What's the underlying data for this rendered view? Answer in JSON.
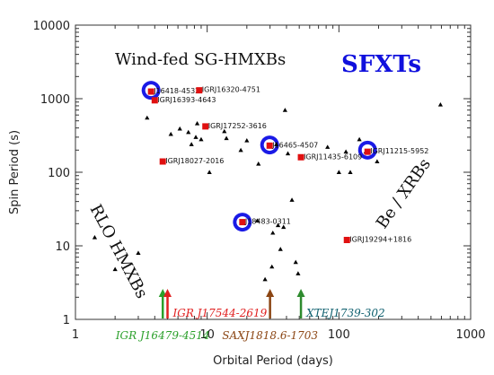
{
  "chart_data": {
    "type": "scatter",
    "title": "",
    "xlabel": "Orbital Period (days)",
    "ylabel": "Spin Period (s)",
    "xscale": "log",
    "yscale": "log",
    "xlim": [
      1,
      1000
    ],
    "ylim": [
      1,
      10000
    ],
    "x_ticks": [
      "1",
      "10",
      "100",
      "1000"
    ],
    "y_ticks": [
      "1",
      "10",
      "100",
      "1000",
      "10000"
    ],
    "grid": false,
    "region_labels": {
      "wind_fed": "Wind-fed SG-HMXBs",
      "sfxts": "SFXTs",
      "rlo": "RLO HMXBs",
      "be": "Be / XRBs"
    },
    "colors": {
      "sfxt_circle": "#1a1ae6",
      "sources": "#e01010",
      "triangles": "#000000",
      "sfxt_text": "#1010dd"
    },
    "series": [
      {
        "name": "",
        "marker": "square",
        "points": [
          {
            "x": 3.75,
            "y": 1250,
            "label": "J16418-4532"
          },
          {
            "x": 8.7,
            "y": 1300,
            "label": "IGRJ16320-4751"
          },
          {
            "x": 4.0,
            "y": 950,
            "label": "IGRJ16393-4643"
          },
          {
            "x": 9.7,
            "y": 420,
            "label": "IGRJ17252-3616"
          },
          {
            "x": 29.8,
            "y": 230,
            "label": "J16465-4507"
          },
          {
            "x": 51.5,
            "y": 160,
            "label": "IGRJ11435-6109"
          },
          {
            "x": 165,
            "y": 190,
            "label": "IGRJ11215-5952"
          },
          {
            "x": 4.6,
            "y": 140,
            "label": "IGRJ18027-2016"
          },
          {
            "x": 18.5,
            "y": 21,
            "label": "J18483-0311"
          },
          {
            "x": 115,
            "y": 12,
            "label": "IGRJ19294+1816"
          }
        ]
      },
      {
        "name": "",
        "marker": "circle",
        "points": [
          {
            "x": 3.75,
            "y": 1300
          },
          {
            "x": 29.8,
            "y": 235
          },
          {
            "x": 165,
            "y": 200
          },
          {
            "x": 18.5,
            "y": 21
          }
        ]
      },
      {
        "name": "",
        "marker": "triangle",
        "points": [
          {
            "x": 1.4,
            "y": 13
          },
          {
            "x": 2.0,
            "y": 4.8
          },
          {
            "x": 3.0,
            "y": 8
          },
          {
            "x": 3.5,
            "y": 550
          },
          {
            "x": 5.3,
            "y": 330
          },
          {
            "x": 6.2,
            "y": 390
          },
          {
            "x": 7.2,
            "y": 350
          },
          {
            "x": 7.6,
            "y": 240
          },
          {
            "x": 8.2,
            "y": 300
          },
          {
            "x": 8.4,
            "y": 460
          },
          {
            "x": 9.0,
            "y": 280
          },
          {
            "x": 10.4,
            "y": 100
          },
          {
            "x": 13.5,
            "y": 360
          },
          {
            "x": 14.0,
            "y": 290
          },
          {
            "x": 18.0,
            "y": 200
          },
          {
            "x": 20.0,
            "y": 270
          },
          {
            "x": 24.0,
            "y": 22
          },
          {
            "x": 24.5,
            "y": 130
          },
          {
            "x": 27.5,
            "y": 3.5
          },
          {
            "x": 31.0,
            "y": 5.2
          },
          {
            "x": 31.5,
            "y": 15
          },
          {
            "x": 33.5,
            "y": 240
          },
          {
            "x": 34.5,
            "y": 19
          },
          {
            "x": 36.0,
            "y": 9
          },
          {
            "x": 38.0,
            "y": 18
          },
          {
            "x": 39.0,
            "y": 700
          },
          {
            "x": 41.0,
            "y": 180
          },
          {
            "x": 44.0,
            "y": 42
          },
          {
            "x": 47.0,
            "y": 6
          },
          {
            "x": 49.0,
            "y": 4.2
          },
          {
            "x": 82.0,
            "y": 220
          },
          {
            "x": 100.0,
            "y": 100
          },
          {
            "x": 113.0,
            "y": 190
          },
          {
            "x": 122.0,
            "y": 100
          },
          {
            "x": 143.0,
            "y": 280
          },
          {
            "x": 160.0,
            "y": 190
          },
          {
            "x": 195.0,
            "y": 140
          },
          {
            "x": 590.0,
            "y": 830
          }
        ]
      }
    ],
    "annotations": [
      {
        "text": "IGR J16479-4514",
        "x": 4.6,
        "color": "#2ba02b",
        "arrow_color": "#2ba02b",
        "row": 2
      },
      {
        "text": "IGR J17544-2619",
        "x": 5.0,
        "color": "#e02020",
        "arrow_color": "#e02020",
        "row": 1
      },
      {
        "text": "SAXJ1818.6-1703",
        "x": 30.0,
        "color": "#8b4513",
        "arrow_color": "#8b4513",
        "row": 2
      },
      {
        "text": "XTEJ1739-302",
        "x": 51.5,
        "color": "#0e5f6e",
        "arrow_color": "#2e8b2e",
        "row": 1
      }
    ]
  }
}
